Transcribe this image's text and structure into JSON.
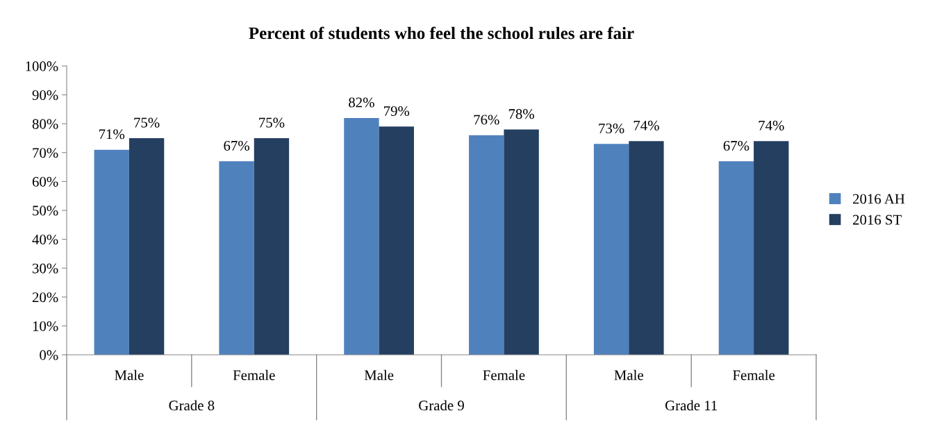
{
  "chart_data": {
    "type": "bar",
    "title": "Percent of students who feel the school rules are fair",
    "categories": [
      "Male",
      "Female",
      "Male",
      "Female",
      "Male",
      "Female"
    ],
    "series": [
      {
        "name": "2016 AH",
        "color": "#4f81bd",
        "values": [
          71,
          67,
          82,
          76,
          73,
          67
        ],
        "value_labels": [
          "71%",
          "67%",
          "82%",
          "76%",
          "73%",
          "67%"
        ]
      },
      {
        "name": "2016 ST",
        "color": "#243f60",
        "values": [
          75,
          75,
          79,
          78,
          74,
          74
        ],
        "value_labels": [
          "75%",
          "75%",
          "79%",
          "78%",
          "74%",
          "74%"
        ]
      }
    ],
    "annotations": [
      "Grade 8",
      "Grade 9",
      "Grade 11"
    ],
    "ylim": [
      0,
      100
    ],
    "yticks": [
      {
        "value": 0,
        "label": "0%"
      },
      {
        "value": 10,
        "label": "10%"
      },
      {
        "value": 20,
        "label": "20%"
      },
      {
        "value": 30,
        "label": "30%"
      },
      {
        "value": 40,
        "label": "40%"
      },
      {
        "value": 50,
        "label": "50%"
      },
      {
        "value": 60,
        "label": "60%"
      },
      {
        "value": 70,
        "label": "70%"
      },
      {
        "value": 80,
        "label": "80%"
      },
      {
        "value": 90,
        "label": "90%"
      },
      {
        "value": 100,
        "label": "100%"
      }
    ],
    "grid": false,
    "legend": "right"
  }
}
